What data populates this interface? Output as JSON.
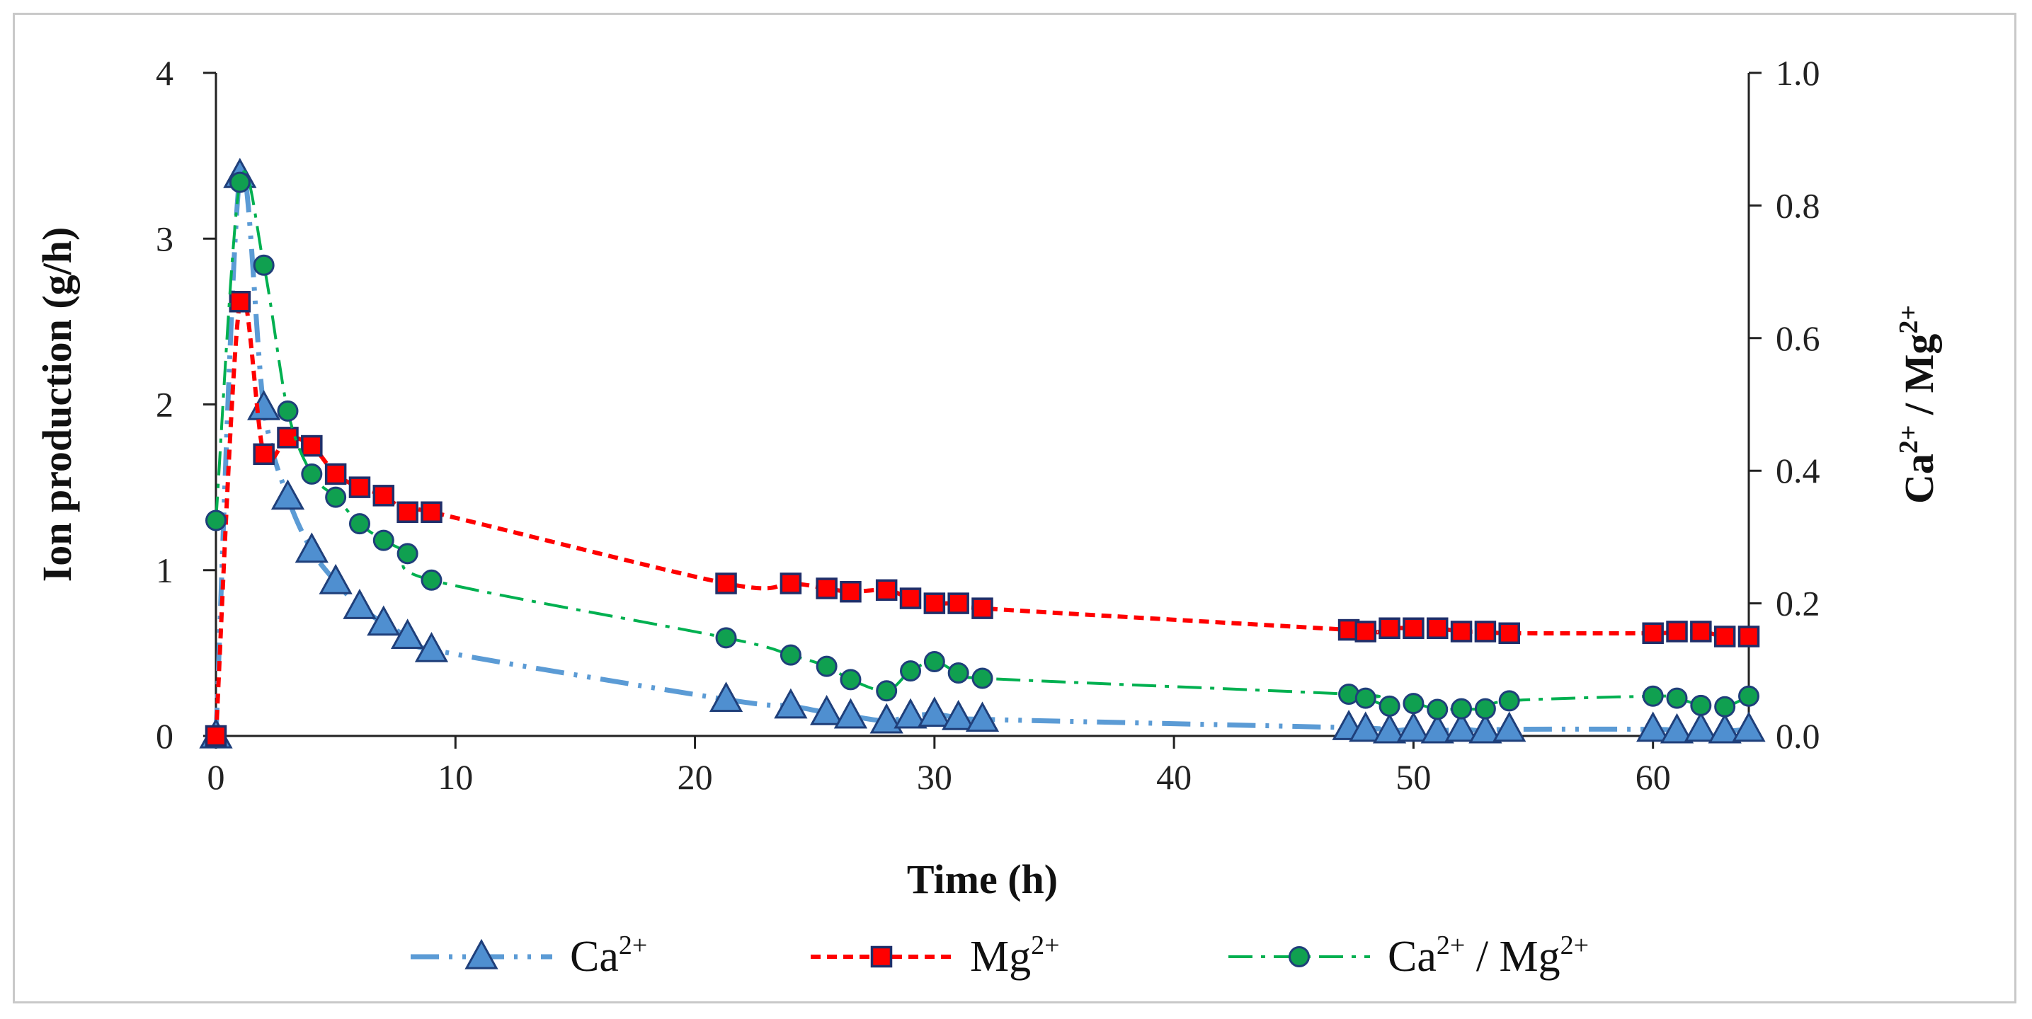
{
  "chart_data": {
    "type": "line",
    "title": "",
    "xlabel": "Time (h)",
    "ylabel": "Ion production (g/h)",
    "y2label": {
      "base1": "Ca",
      "sup1": "2+",
      "sep": " / Mg",
      "sup2": "2+"
    },
    "xlim": [
      0,
      64
    ],
    "ylim": [
      0,
      4
    ],
    "y2lim": [
      0,
      1.0
    ],
    "xticks": [
      "0",
      "10",
      "20",
      "30",
      "40",
      "50",
      "60"
    ],
    "yticks": [
      "0",
      "1",
      "2",
      "3",
      "4"
    ],
    "y2ticks": [
      "0.0",
      "0.2",
      "0.4",
      "0.6",
      "0.8",
      "1.0"
    ],
    "grid": false,
    "legend_position": "bottom",
    "series": [
      {
        "name": "Ca2+",
        "label_base": "Ca",
        "label_sup": "2+",
        "axis": "left",
        "marker": "triangle",
        "color": "#5b9bd5",
        "marker_fill": "#4f8fd0",
        "marker_edge": "#1f3f7a",
        "line_style": "dash-dot-dot",
        "x": [
          0,
          1,
          2,
          3,
          4,
          5,
          6,
          7,
          8,
          9,
          21.3,
          24,
          25.5,
          26.5,
          28,
          29,
          30,
          31,
          32,
          47.3,
          48,
          49,
          50,
          51,
          52,
          53,
          54,
          60,
          61,
          62,
          63,
          64
        ],
        "values": [
          0,
          3.38,
          1.98,
          1.44,
          1.12,
          0.93,
          0.78,
          0.68,
          0.6,
          0.52,
          0.22,
          0.18,
          0.14,
          0.12,
          0.09,
          0.12,
          0.13,
          0.11,
          0.1,
          0.05,
          0.04,
          0.03,
          0.04,
          0.03,
          0.04,
          0.03,
          0.04,
          0.04,
          0.03,
          0.04,
          0.03,
          0.04
        ]
      },
      {
        "name": "Mg2+",
        "label_base": "Mg",
        "label_sup": "2+",
        "axis": "left",
        "marker": "square",
        "color": "#ff0000",
        "marker_fill": "#ff0000",
        "marker_edge": "#1f2f6a",
        "line_style": "dashed",
        "x": [
          0,
          1,
          2,
          3,
          4,
          5,
          6,
          7,
          8,
          9,
          21.3,
          24,
          25.5,
          26.5,
          28,
          29,
          30,
          31,
          32,
          47.3,
          48,
          49,
          50,
          51,
          52,
          53,
          54,
          60,
          61,
          62,
          63,
          64
        ],
        "values": [
          0,
          2.62,
          1.7,
          1.8,
          1.75,
          1.58,
          1.5,
          1.45,
          1.35,
          1.35,
          0.92,
          0.92,
          0.89,
          0.87,
          0.88,
          0.83,
          0.8,
          0.8,
          0.77,
          0.64,
          0.63,
          0.65,
          0.65,
          0.65,
          0.63,
          0.63,
          0.62,
          0.62,
          0.63,
          0.63,
          0.6,
          0.6
        ]
      },
      {
        "name": "Ca2+ / Mg2+",
        "label_base": "Ca",
        "label_sup": "2+",
        "label_mid": " / Mg",
        "label_sup2": "2+",
        "axis": "right",
        "marker": "circle",
        "color": "#00b050",
        "marker_fill": "#10a050",
        "marker_edge": "#1f3f7a",
        "line_style": "long-dash-dot",
        "x": [
          0,
          1,
          2,
          3,
          4,
          5,
          6,
          7,
          8,
          9,
          21.3,
          24,
          25.5,
          26.5,
          28,
          29,
          30,
          31,
          32,
          47.3,
          48,
          49,
          50,
          51,
          52,
          53,
          54,
          60,
          61,
          62,
          63,
          64
        ],
        "values": [
          0.325,
          0.835,
          0.71,
          0.49,
          0.395,
          0.36,
          0.32,
          0.295,
          0.275,
          0.235,
          0.148,
          0.122,
          0.105,
          0.085,
          0.068,
          0.098,
          0.112,
          0.095,
          0.087,
          0.063,
          0.057,
          0.045,
          0.049,
          0.04,
          0.041,
          0.041,
          0.053,
          0.06,
          0.057,
          0.046,
          0.044,
          0.06
        ]
      }
    ]
  }
}
